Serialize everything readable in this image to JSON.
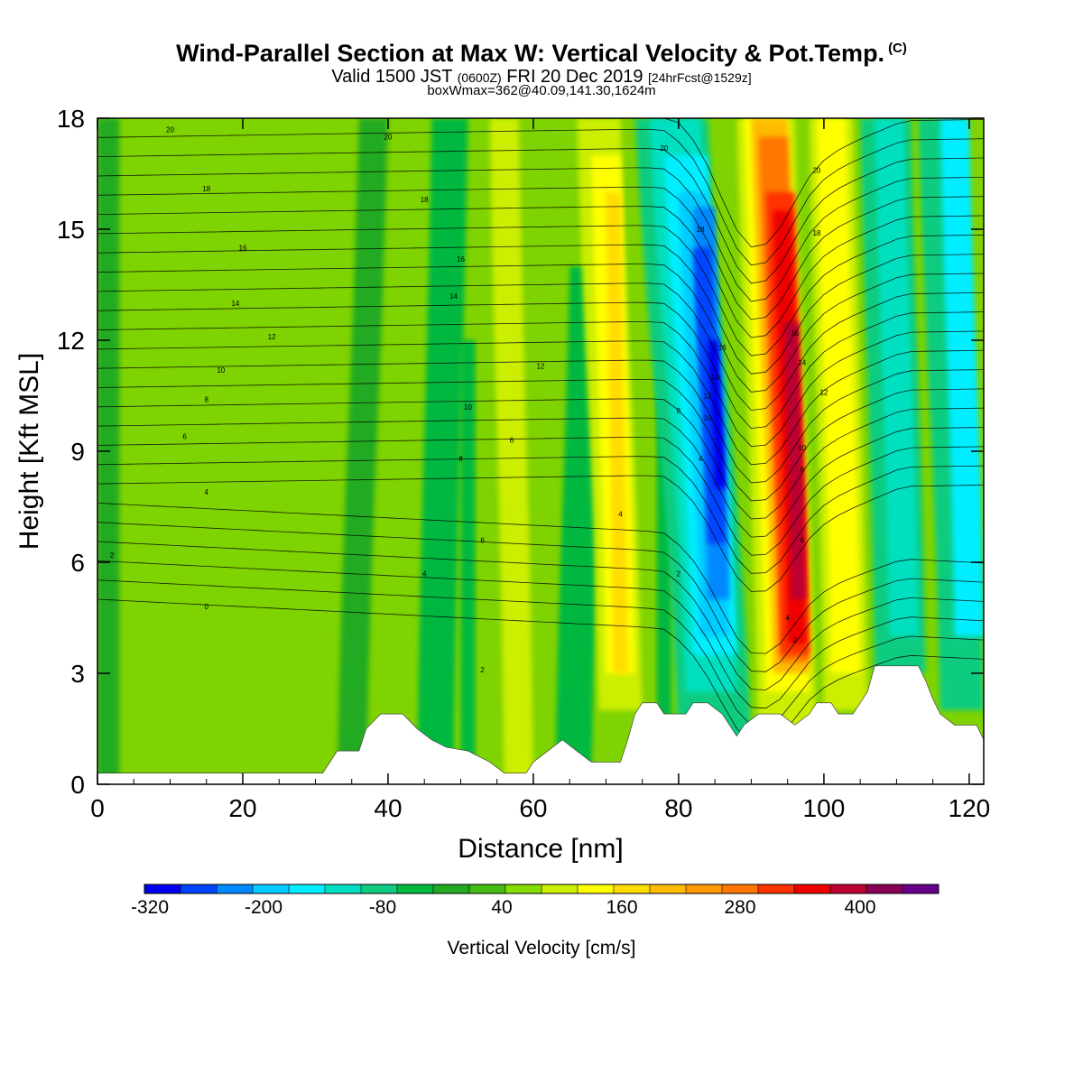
{
  "title": {
    "main": "Wind-Parallel Section at Max W: Vertical Velocity & Pot.Temp.",
    "copyright": "(C)",
    "valid_prefix": "Valid 1500 JST",
    "valid_utc": "(0600Z)",
    "valid_date": "FRI 20 Dec 2019",
    "forecast": "[24hrFcst@1529z]",
    "box_info": "boxWmax=362@40.09,141.30,1624m"
  },
  "chart_data": {
    "type": "heatmap",
    "xlabel": "Distance [nm]",
    "ylabel": "Height [Kft MSL]",
    "xlim": [
      0,
      122
    ],
    "ylim": [
      0,
      18
    ],
    "x_ticks": [
      0,
      20,
      40,
      60,
      80,
      100,
      120
    ],
    "y_ticks": [
      0,
      3,
      6,
      9,
      12,
      15,
      18
    ],
    "colorbar": {
      "label": "Vertical Velocity [cm/s]",
      "tick_labels": [
        "-320",
        "-200",
        "-80",
        "40",
        "160",
        "280",
        "400"
      ],
      "colors": [
        "#0000ee",
        "#0044ff",
        "#0088ff",
        "#00ccff",
        "#00eeff",
        "#00e0c0",
        "#10cc80",
        "#00b840",
        "#22aa22",
        "#44bb11",
        "#88dd00",
        "#ccee00",
        "#ffff00",
        "#ffdd00",
        "#ffbb00",
        "#ff9900",
        "#ff7700",
        "#ff3300",
        "#ee0000",
        "#bb0033",
        "#880055",
        "#660088"
      ]
    },
    "velocity_features": [
      {
        "x": 72,
        "y_range": [
          3,
          18
        ],
        "value": 140
      },
      {
        "x": 85,
        "y_range": [
          5,
          15.5
        ],
        "value": -320
      },
      {
        "x": 96,
        "y_range": [
          3.5,
          16
        ],
        "value": 400
      },
      {
        "x": 110,
        "y_range": [
          3,
          18
        ],
        "value": -150
      },
      {
        "x": 120,
        "y_range": [
          3,
          18
        ],
        "value": -200
      }
    ],
    "terrain": [
      [
        0,
        0.3
      ],
      [
        31,
        0.3
      ],
      [
        32,
        0.6
      ],
      [
        33,
        0.9
      ],
      [
        36,
        0.9
      ],
      [
        37,
        1.5
      ],
      [
        39,
        1.9
      ],
      [
        42,
        1.9
      ],
      [
        44,
        1.5
      ],
      [
        46,
        1.2
      ],
      [
        48,
        1.0
      ],
      [
        51,
        0.9
      ],
      [
        54,
        0.6
      ],
      [
        56,
        0.3
      ],
      [
        59,
        0.3
      ],
      [
        60,
        0.6
      ],
      [
        62,
        0.9
      ],
      [
        64,
        1.2
      ],
      [
        66,
        0.9
      ],
      [
        68,
        0.6
      ],
      [
        72,
        0.6
      ],
      [
        73,
        1.2
      ],
      [
        74,
        1.9
      ],
      [
        75,
        2.2
      ],
      [
        77,
        2.2
      ],
      [
        78,
        1.9
      ],
      [
        81,
        1.9
      ],
      [
        82,
        2.2
      ],
      [
        84,
        2.2
      ],
      [
        86,
        1.9
      ],
      [
        87,
        1.6
      ],
      [
        88,
        1.3
      ],
      [
        89,
        1.6
      ],
      [
        91,
        1.9
      ],
      [
        94,
        1.9
      ],
      [
        96,
        1.6
      ],
      [
        98,
        1.9
      ],
      [
        99,
        2.2
      ],
      [
        101,
        2.2
      ],
      [
        102,
        1.9
      ],
      [
        104,
        1.9
      ],
      [
        105,
        2.2
      ],
      [
        106,
        2.5
      ],
      [
        107,
        3.2
      ],
      [
        113,
        3.2
      ],
      [
        114,
        2.8
      ],
      [
        115,
        2.3
      ],
      [
        116,
        1.9
      ],
      [
        118,
        1.6
      ],
      [
        121,
        1.6
      ],
      [
        122,
        1.2
      ]
    ],
    "theta_contour_labels": [
      {
        "text": "0",
        "x": 15,
        "y": 4.8
      },
      {
        "text": "2",
        "x": 2,
        "y": 6.2
      },
      {
        "text": "4",
        "x": 15,
        "y": 7.9
      },
      {
        "text": "6",
        "x": 12,
        "y": 9.4
      },
      {
        "text": "8",
        "x": 15,
        "y": 10.4
      },
      {
        "text": "10",
        "x": 17,
        "y": 11.2
      },
      {
        "text": "12",
        "x": 24,
        "y": 12.1
      },
      {
        "text": "14",
        "x": 19,
        "y": 13.0
      },
      {
        "text": "16",
        "x": 20,
        "y": 14.5
      },
      {
        "text": "18",
        "x": 15,
        "y": 16.1
      },
      {
        "text": "20",
        "x": 10,
        "y": 17.7
      },
      {
        "text": "20",
        "x": 40,
        "y": 17.5
      },
      {
        "text": "18",
        "x": 45,
        "y": 15.8
      },
      {
        "text": "16",
        "x": 50,
        "y": 14.2
      },
      {
        "text": "14",
        "x": 49,
        "y": 13.2
      },
      {
        "text": "12",
        "x": 61,
        "y": 11.3
      },
      {
        "text": "10",
        "x": 51,
        "y": 10.2
      },
      {
        "text": "8",
        "x": 50,
        "y": 8.8
      },
      {
        "text": "6",
        "x": 57,
        "y": 9.3
      },
      {
        "text": "6",
        "x": 53,
        "y": 6.6
      },
      {
        "text": "4",
        "x": 45,
        "y": 5.7
      },
      {
        "text": "2",
        "x": 53,
        "y": 3.1
      },
      {
        "text": "4",
        "x": 72,
        "y": 7.3
      },
      {
        "text": "2",
        "x": 80,
        "y": 5.7
      },
      {
        "text": "8",
        "x": 80,
        "y": 10.1
      },
      {
        "text": "20",
        "x": 78,
        "y": 17.2
      },
      {
        "text": "18",
        "x": 83,
        "y": 15.0
      },
      {
        "text": "16",
        "x": 86,
        "y": 11.8
      },
      {
        "text": "14",
        "x": 85,
        "y": 11.0
      },
      {
        "text": "12",
        "x": 84,
        "y": 10.5
      },
      {
        "text": "10",
        "x": 84,
        "y": 9.9
      },
      {
        "text": "4",
        "x": 83,
        "y": 8.8
      },
      {
        "text": "20",
        "x": 99,
        "y": 16.6
      },
      {
        "text": "18",
        "x": 99,
        "y": 14.9
      },
      {
        "text": "16",
        "x": 96,
        "y": 12.2
      },
      {
        "text": "14",
        "x": 97,
        "y": 11.4
      },
      {
        "text": "12",
        "x": 100,
        "y": 10.6
      },
      {
        "text": "10",
        "x": 97,
        "y": 9.1
      },
      {
        "text": "8",
        "x": 97,
        "y": 8.5
      },
      {
        "text": "6",
        "x": 97,
        "y": 6.6
      },
      {
        "text": "4",
        "x": 95,
        "y": 4.5
      },
      {
        "text": "2",
        "x": 96,
        "y": 3.9
      }
    ]
  }
}
